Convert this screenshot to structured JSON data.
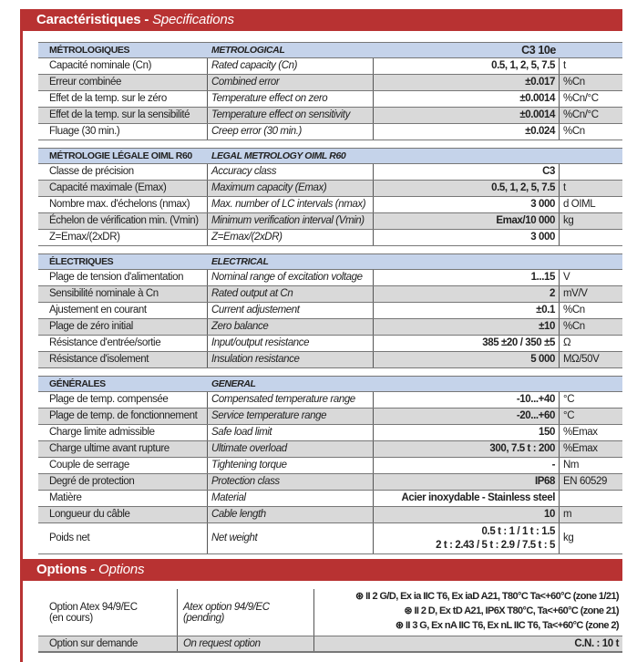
{
  "header": {
    "title_fr": "Caractéristiques - ",
    "title_en": "Specifications"
  },
  "sections": [
    {
      "fr": "MÉTROLOGIQUES",
      "en": "METROLOGICAL",
      "model": "C3 10e",
      "rows": [
        {
          "fr": "Capacité nominale (Cn)",
          "en": "Rated capacity (Cn)",
          "value": "0.5, 1, 2, 5, 7.5",
          "unit": "t"
        },
        {
          "fr": "Erreur combinée",
          "en": "Combined error",
          "value": "±0.017",
          "unit": "%Cn"
        },
        {
          "fr": "Effet de la temp. sur le zéro",
          "en": "Temperature effect on zero",
          "value": "±0.0014",
          "unit": "%Cn/°C"
        },
        {
          "fr": "Effet de la temp. sur la sensibilité",
          "en": "Temperature effect on sensitivity",
          "value": "±0.0014",
          "unit": "%Cn/°C"
        },
        {
          "fr": "Fluage (30 min.)",
          "en": "Creep error (30 min.)",
          "value": "±0.024",
          "unit": "%Cn"
        }
      ]
    },
    {
      "fr": "MÉTROLOGIE LÉGALE OIML R60",
      "en": "LEGAL METROLOGY OIML R60",
      "model": "",
      "rows": [
        {
          "fr": "Classe de précision",
          "en": "Accuracy class",
          "value": "C3",
          "unit": ""
        },
        {
          "fr": "Capacité maximale (Emax)",
          "en": "Maximum capacity (Emax)",
          "value": "0.5, 1, 2, 5, 7.5",
          "unit": "t"
        },
        {
          "fr": "Nombre max. d'échelons (nmax)",
          "en": "Max. number of LC intervals (nmax)",
          "value": "3 000",
          "unit": "d OIML"
        },
        {
          "fr": "Échelon de vérification min. (Vmin)",
          "en": "Minimum verification interval (Vmin)",
          "value": "Emax/10 000",
          "unit": "kg"
        },
        {
          "fr": "Z=Emax/(2xDR)",
          "en": "Z=Emax/(2xDR)",
          "value": "3 000",
          "unit": ""
        }
      ]
    },
    {
      "fr": "ÉLECTRIQUES",
      "en": "ELECTRICAL",
      "model": "",
      "rows": [
        {
          "fr": "Plage de tension d'alimentation",
          "en": "Nominal range of excitation voltage",
          "value": "1...15",
          "unit": "V"
        },
        {
          "fr": "Sensibilité nominale à Cn",
          "en": "Rated output at Cn",
          "value": "2",
          "unit": "mV/V"
        },
        {
          "fr": "Ajustement en courant",
          "en": "Current adjustement",
          "value": "±0.1",
          "unit": "%Cn"
        },
        {
          "fr": "Plage de zéro initial",
          "en": "Zero balance",
          "value": "±10",
          "unit": "%Cn"
        },
        {
          "fr": "Résistance d'entrée/sortie",
          "en": "Input/output resistance",
          "value": "385 ±20 / 350 ±5",
          "unit": "Ω"
        },
        {
          "fr": "Résistance d'isolement",
          "en": "Insulation resistance",
          "value": "5 000",
          "unit": "MΩ/50V"
        }
      ]
    },
    {
      "fr": "GÉNÉRALES",
      "en": "GENERAL",
      "model": "",
      "rows": [
        {
          "fr": "Plage de temp. compensée",
          "en": "Compensated temperature range",
          "value": "-10...+40",
          "unit": "°C"
        },
        {
          "fr": "Plage de temp. de fonctionnement",
          "en": "Service temperature range",
          "value": "-20...+60",
          "unit": "°C"
        },
        {
          "fr": "Charge limite admissible",
          "en": "Safe load limit",
          "value": "150",
          "unit": "%Emax"
        },
        {
          "fr": "Charge ultime avant rupture",
          "en": "Ultimate overload",
          "value": "300, 7.5 t : 200",
          "unit": "%Emax"
        },
        {
          "fr": "Couple de serrage",
          "en": "Tightening torque",
          "value": "-",
          "unit": "Nm"
        },
        {
          "fr": "Degré de protection",
          "en": "Protection class",
          "value": "IP68",
          "unit": "EN 60529"
        },
        {
          "fr": "Matière",
          "en": "Material",
          "value": "Acier inoxydable - Stainless steel",
          "unit": ""
        },
        {
          "fr": "Longueur du câble",
          "en": "Cable length",
          "value": "10",
          "unit": "m"
        },
        {
          "fr": "Poids net",
          "en": "Net weight",
          "value": "0.5 t : 1 / 1 t : 1.5",
          "value2": "2 t : 2.43 / 5 t : 2.9 / 7.5 t : 5",
          "unit": "kg"
        }
      ]
    }
  ],
  "options": {
    "title_fr": "Options - ",
    "title_en": "Options",
    "atex": {
      "fr1": "Option Atex 94/9/EC",
      "fr2": "(en cours)",
      "en1": "Atex option 94/9/EC",
      "en2": "(pending)",
      "lines": [
        "⊛ II 2 G/D, Ex ia IIC T6, Ex iaD A21, T80°C Ta<+60°C (zone 1/21)",
        "⊛ II 2 D, Ex tD A21, IP6X T80°C, Ta<+60°C (zone 21)",
        "⊛ II 3 G, Ex nA IIC T6, Ex nL IIC T6, Ta<+60°C (zone 2)"
      ]
    },
    "request": {
      "fr": "Option sur demande",
      "en": "On request option",
      "value": "C.N. : 10 t"
    }
  }
}
